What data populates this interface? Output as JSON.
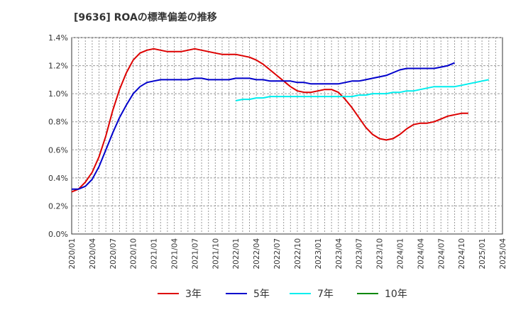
{
  "chart_data": {
    "type": "line",
    "title": "[9636]  ROAの標準偏差の推移",
    "xlabel": "",
    "ylabel": "",
    "y_tick_labels": [
      "0.0%",
      "0.2%",
      "0.4%",
      "0.6%",
      "0.8%",
      "1.0%",
      "1.2%",
      "1.4%"
    ],
    "y_ticks": [
      0,
      0.2,
      0.4,
      0.6,
      0.8,
      1.0,
      1.2,
      1.4
    ],
    "ylim": [
      0,
      1.4
    ],
    "x_tick_labels": [
      "2020/01",
      "2020/04",
      "2020/07",
      "2020/10",
      "2021/01",
      "2021/04",
      "2021/07",
      "2021/10",
      "2022/01",
      "2022/04",
      "2022/07",
      "2022/10",
      "2023/01",
      "2023/04",
      "2023/07",
      "2023/10",
      "2024/01",
      "2024/04",
      "2024/07",
      "2024/10",
      "2025/01",
      "2025/04"
    ],
    "x_start": "2020/01",
    "x_end": "2025/04",
    "grid": true,
    "legend_position": "bottom",
    "series": [
      {
        "name": "3年",
        "color": "#dd0000",
        "start": "2020/01",
        "values": [
          0.3,
          0.32,
          0.37,
          0.44,
          0.55,
          0.7,
          0.88,
          1.03,
          1.15,
          1.24,
          1.29,
          1.31,
          1.32,
          1.31,
          1.3,
          1.3,
          1.3,
          1.31,
          1.32,
          1.31,
          1.3,
          1.29,
          1.28,
          1.28,
          1.28,
          1.27,
          1.26,
          1.24,
          1.21,
          1.17,
          1.13,
          1.09,
          1.05,
          1.02,
          1.01,
          1.01,
          1.02,
          1.03,
          1.03,
          1.01,
          0.96,
          0.9,
          0.83,
          0.76,
          0.71,
          0.68,
          0.67,
          0.68,
          0.71,
          0.75,
          0.78,
          0.79,
          0.79,
          0.8,
          0.82,
          0.84,
          0.85,
          0.86,
          0.86
        ]
      },
      {
        "name": "5年",
        "color": "#0000cc",
        "start": "2020/01",
        "values": [
          0.32,
          0.32,
          0.34,
          0.39,
          0.48,
          0.6,
          0.72,
          0.83,
          0.92,
          1.0,
          1.05,
          1.08,
          1.09,
          1.1,
          1.1,
          1.1,
          1.1,
          1.1,
          1.11,
          1.11,
          1.1,
          1.1,
          1.1,
          1.1,
          1.11,
          1.11,
          1.11,
          1.1,
          1.1,
          1.09,
          1.09,
          1.09,
          1.09,
          1.08,
          1.08,
          1.07,
          1.07,
          1.07,
          1.07,
          1.07,
          1.08,
          1.09,
          1.09,
          1.1,
          1.11,
          1.12,
          1.13,
          1.15,
          1.17,
          1.18,
          1.18,
          1.18,
          1.18,
          1.18,
          1.19,
          1.2,
          1.22
        ]
      },
      {
        "name": "7年",
        "color": "#00eeee",
        "start": "2022/01",
        "values": [
          0.95,
          0.96,
          0.96,
          0.97,
          0.97,
          0.98,
          0.98,
          0.98,
          0.98,
          0.98,
          0.98,
          0.98,
          0.98,
          0.98,
          0.98,
          0.98,
          0.98,
          0.98,
          0.99,
          0.99,
          1.0,
          1.0,
          1.0,
          1.01,
          1.01,
          1.02,
          1.02,
          1.03,
          1.04,
          1.05,
          1.05,
          1.05,
          1.05,
          1.06,
          1.07,
          1.08,
          1.09,
          1.1
        ]
      },
      {
        "name": "10年",
        "color": "#008800",
        "start": "2022/01",
        "values": []
      }
    ]
  }
}
